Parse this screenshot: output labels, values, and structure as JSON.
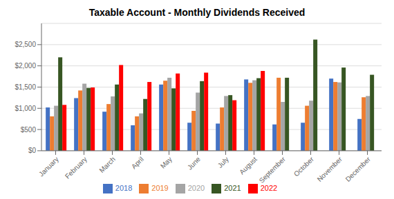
{
  "chart_data": {
    "type": "bar",
    "title": "Taxable Account - Monthly Dividends Received",
    "categories": [
      "January",
      "February",
      "March",
      "April",
      "May",
      "June",
      "July",
      "August",
      "September",
      "October",
      "November",
      "December"
    ],
    "series": [
      {
        "name": "2018",
        "color": "#4472C4",
        "values": [
          1020,
          1240,
          920,
          600,
          1560,
          660,
          640,
          1680,
          620,
          660,
          1700,
          750
        ]
      },
      {
        "name": "2019",
        "color": "#ED7D31",
        "values": [
          810,
          1420,
          1100,
          810,
          1650,
          940,
          1020,
          1600,
          1720,
          1060,
          1620,
          1260
        ]
      },
      {
        "name": "2020",
        "color": "#A5A5A5",
        "values": [
          1060,
          1580,
          1280,
          880,
          1720,
          1370,
          1290,
          1660,
          1150,
          1180,
          1610,
          1290
        ]
      },
      {
        "name": "2021",
        "color": "#375623",
        "values": [
          2200,
          1480,
          1560,
          1220,
          1470,
          1640,
          1310,
          1710,
          1720,
          2620,
          1960,
          1790
        ]
      },
      {
        "name": "2022",
        "color": "#FF0000",
        "values": [
          1080,
          1490,
          2020,
          1620,
          1820,
          1840,
          1190,
          1880,
          null,
          null,
          null,
          null
        ]
      }
    ],
    "ylim": [
      0,
      3000
    ],
    "yticks": [
      {
        "value": 0,
        "label": "$0"
      },
      {
        "value": 500,
        "label": "$500"
      },
      {
        "value": 1000,
        "label": "$1,000"
      },
      {
        "value": 1500,
        "label": "$1,500"
      },
      {
        "value": 2000,
        "label": "$2,000"
      },
      {
        "value": 2500,
        "label": "$2,500"
      }
    ],
    "grid": true,
    "legend": "bottom"
  }
}
